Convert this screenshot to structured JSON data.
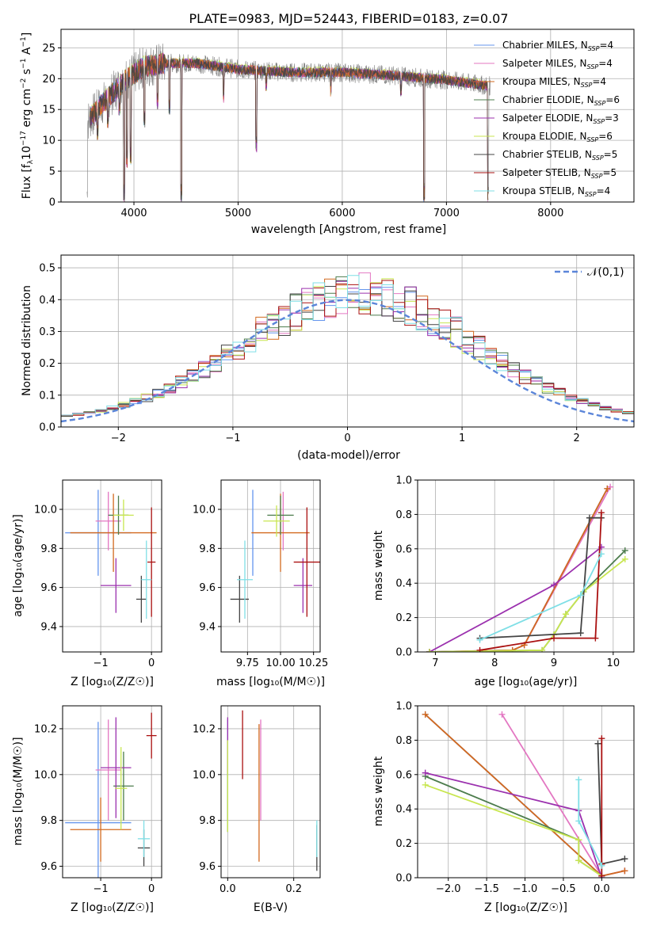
{
  "figure": {
    "title": "PLATE=0983, MJD=52443, FIBERID=0183, z=0.07"
  },
  "series_meta": [
    {
      "name": "Chabrier MILES, N$_{SSP}$=4",
      "label_main": "Chabrier MILES, N",
      "label_sub": "SSP",
      "label_tail": "=4",
      "color": "#6495ed"
    },
    {
      "name": "Salpeter MILES, N_SSP=4",
      "label_main": "Salpeter MILES, N",
      "label_sub": "SSP",
      "label_tail": "=4",
      "color": "#e377c2"
    },
    {
      "name": "Kroupa MILES, N_SSP=4",
      "label_main": "Kroupa MILES, N",
      "label_sub": "SSP",
      "label_tail": "=4",
      "color": "#d2691e"
    },
    {
      "name": "Chabrier ELODIE, N_SSP=6",
      "label_main": "Chabrier ELODIE, N",
      "label_sub": "SSP",
      "label_tail": "=6",
      "color": "#4c7c4c"
    },
    {
      "name": "Salpeter ELODIE, N_SSP=3",
      "label_main": "Salpeter ELODIE, N",
      "label_sub": "SSP",
      "label_tail": "=3",
      "color": "#9b30ae"
    },
    {
      "name": "Kroupa ELODIE, N_SSP=6",
      "label_main": "Kroupa ELODIE, N",
      "label_sub": "SSP",
      "label_tail": "=6",
      "color": "#c8e650"
    },
    {
      "name": "Chabrier STELIB, N_SSP=5",
      "label_main": "Chabrier STELIB, N",
      "label_sub": "SSP",
      "label_tail": "=5",
      "color": "#444444"
    },
    {
      "name": "Salpeter STELIB, N_SSP=5",
      "label_main": "Salpeter STELIB, N",
      "label_sub": "SSP",
      "label_tail": "=5",
      "color": "#aa1010"
    },
    {
      "name": "Kroupa STELIB, N_SSP=4",
      "label_main": "Kroupa STELIB, N",
      "label_sub": "SSP",
      "label_tail": "=4",
      "color": "#7fdfe6"
    }
  ],
  "chart_data": [
    {
      "id": "spectrum",
      "type": "line",
      "xlabel": "wavelength [Angstrom, rest frame]",
      "ylabel": "Flux [f_λ 10^-17 erg cm^-2 s^-1 A^-1]",
      "xlim": [
        3300,
        8800
      ],
      "ylim": [
        0,
        28
      ],
      "xticks": [
        4000,
        5000,
        6000,
        7000,
        8000
      ],
      "yticks": [
        0,
        5,
        10,
        15,
        20,
        25
      ],
      "legend_position": "top-right",
      "data_color": "#808080",
      "continuum": [
        [
          3550,
          13
        ],
        [
          3700,
          16
        ],
        [
          3900,
          19.5
        ],
        [
          4100,
          22
        ],
        [
          4300,
          22.5
        ],
        [
          4600,
          22.5
        ],
        [
          5000,
          21.5
        ],
        [
          5500,
          21
        ],
        [
          6000,
          21
        ],
        [
          6500,
          20.5
        ],
        [
          7000,
          19.8
        ],
        [
          7400,
          18.8
        ]
      ],
      "absorption_lines": [
        {
          "x": 3550,
          "y": 0
        },
        {
          "x": 3650,
          "y": 10
        },
        {
          "x": 3750,
          "y": 12
        },
        {
          "x": 3860,
          "y": 14
        },
        {
          "x": 3905,
          "y": 0
        },
        {
          "x": 3933,
          "y": 5.5
        },
        {
          "x": 3968,
          "y": 6
        },
        {
          "x": 4101,
          "y": 12
        },
        {
          "x": 4227,
          "y": 15
        },
        {
          "x": 4340,
          "y": 14
        },
        {
          "x": 4455,
          "y": 0
        },
        {
          "x": 4861,
          "y": 16
        },
        {
          "x": 5175,
          "y": 8
        },
        {
          "x": 5270,
          "y": 18
        },
        {
          "x": 5890,
          "y": 17
        },
        {
          "x": 6563,
          "y": 17
        },
        {
          "x": 6785,
          "y": 0
        },
        {
          "x": 7400,
          "y": 0
        }
      ]
    },
    {
      "id": "residuals",
      "type": "histogram",
      "xlabel": "(data-model)/error",
      "ylabel": "Normed distribution",
      "xlim": [
        -2.5,
        2.5
      ],
      "ylim": [
        0,
        0.54
      ],
      "xticks": [
        -2,
        -1,
        0,
        1,
        2
      ],
      "yticks": [
        0.0,
        0.1,
        0.2,
        0.3,
        0.4,
        0.5
      ],
      "bin_width": 0.1,
      "legend_label": "𝒩(0,1)",
      "gauss_color": "#5b85d9",
      "gauss_mean": 0,
      "gauss_sigma": 1
    },
    {
      "id": "age-vs-Z",
      "type": "errorbar",
      "xlabel": "Z [log₁₀(Z/Z☉)]",
      "ylabel": "age  [log₁₀(age/yr)]",
      "xlim": [
        -1.75,
        0.2
      ],
      "ylim": [
        9.27,
        10.15
      ],
      "xticks": [
        -1,
        0
      ],
      "yticks": [
        9.4,
        9.6,
        9.8,
        10.0
      ],
      "points": [
        {
          "s": 0,
          "x": -1.05,
          "xe": 0.65,
          "y": 9.88,
          "ye": 0.22
        },
        {
          "s": 1,
          "x": -0.85,
          "xe": 0.25,
          "y": 9.94,
          "ye": 0.15
        },
        {
          "s": 2,
          "x": -0.75,
          "xe": 0.85,
          "y": 9.88,
          "ye": 0.2
        },
        {
          "s": 3,
          "x": -0.65,
          "xe": 0.2,
          "y": 9.97,
          "ye": 0.1
        },
        {
          "s": 4,
          "x": -0.7,
          "xe": 0.3,
          "y": 9.61,
          "ye": 0.14
        },
        {
          "s": 5,
          "x": -0.55,
          "xe": 0.2,
          "y": 9.97,
          "ye": 0.08
        },
        {
          "s": 6,
          "x": -0.2,
          "xe": 0.1,
          "y": 9.54,
          "ye": 0.12
        },
        {
          "s": 7,
          "x": 0.0,
          "xe": 0.08,
          "y": 9.73,
          "ye": 0.28
        },
        {
          "s": 8,
          "x": -0.1,
          "xe": 0.1,
          "y": 9.64,
          "ye": 0.2
        }
      ]
    },
    {
      "id": "age-vs-mass",
      "type": "errorbar",
      "xlabel": "mass [log₁₀(M/M☉)]",
      "ylabel": "",
      "xlim": [
        9.55,
        10.3
      ],
      "ylim": [
        9.27,
        10.15
      ],
      "xticks": [
        9.75,
        10.0,
        10.25
      ],
      "yticks": [
        9.4,
        9.6,
        9.8,
        10.0
      ],
      "points": [
        {
          "s": 0,
          "x": 9.79,
          "xe": 0.0,
          "y": 9.88,
          "ye": 0.22
        },
        {
          "s": 1,
          "x": 10.02,
          "xe": 0.0,
          "y": 9.94,
          "ye": 0.15
        },
        {
          "s": 2,
          "x": 10.0,
          "xe": 0.22,
          "y": 9.88,
          "ye": 0.2
        },
        {
          "s": 3,
          "x": 10.0,
          "xe": 0.1,
          "y": 9.97,
          "ye": 0.1
        },
        {
          "s": 4,
          "x": 10.17,
          "xe": 0.07,
          "y": 9.61,
          "ye": 0.14
        },
        {
          "s": 5,
          "x": 9.97,
          "xe": 0.1,
          "y": 9.94,
          "ye": 0.08
        },
        {
          "s": 6,
          "x": 9.69,
          "xe": 0.07,
          "y": 9.54,
          "ye": 0.12
        },
        {
          "s": 7,
          "x": 10.2,
          "xe": 0.1,
          "y": 9.73,
          "ye": 0.28
        },
        {
          "s": 8,
          "x": 9.73,
          "xe": 0.06,
          "y": 9.64,
          "ye": 0.2
        }
      ]
    },
    {
      "id": "cum-mass-vs-age",
      "type": "line",
      "xlabel": "age  [log₁₀(age/yr)]",
      "ylabel": "mass weight",
      "xlim": [
        6.7,
        10.35
      ],
      "ylim": [
        0,
        1
      ],
      "xticks": [
        7,
        8,
        9,
        10
      ],
      "yticks": [
        0.0,
        0.2,
        0.4,
        0.6,
        0.8,
        1.0
      ],
      "series": [
        {
          "s": 0,
          "x": [
            6.9,
            8.3,
            8.5,
            9.9
          ],
          "y": [
            0.0,
            0.01,
            0.04,
            0.95
          ]
        },
        {
          "s": 1,
          "x": [
            6.9,
            8.3,
            8.5,
            9.95
          ],
          "y": [
            0.0,
            0.01,
            0.04,
            0.96
          ]
        },
        {
          "s": 2,
          "x": [
            6.9,
            8.3,
            8.5,
            9.9
          ],
          "y": [
            0.0,
            0.01,
            0.04,
            0.95
          ]
        },
        {
          "s": 3,
          "x": [
            6.9,
            8.8,
            9.0,
            9.2,
            9.5,
            10.2
          ],
          "y": [
            0.0,
            0.01,
            0.1,
            0.22,
            0.35,
            0.59
          ]
        },
        {
          "s": 4,
          "x": [
            6.9,
            9.0,
            9.8
          ],
          "y": [
            0.0,
            0.39,
            0.61
          ]
        },
        {
          "s": 5,
          "x": [
            6.9,
            8.8,
            9.0,
            9.2,
            9.5,
            10.2
          ],
          "y": [
            0.0,
            0.01,
            0.1,
            0.22,
            0.35,
            0.54
          ]
        },
        {
          "s": 6,
          "x": [
            7.75,
            9.45,
            9.6,
            9.8
          ],
          "y": [
            0.08,
            0.11,
            0.78,
            0.78
          ]
        },
        {
          "s": 7,
          "x": [
            7.75,
            9.0,
            9.7,
            9.8
          ],
          "y": [
            0.01,
            0.08,
            0.08,
            0.81
          ]
        },
        {
          "s": 8,
          "x": [
            7.75,
            9.45,
            9.8
          ],
          "y": [
            0.07,
            0.33,
            0.57
          ]
        }
      ]
    },
    {
      "id": "mass-vs-Z",
      "type": "errorbar",
      "xlabel": "Z [log₁₀(Z/Z☉)]",
      "ylabel": "mass [log₁₀(M/M☉)]",
      "xlim": [
        -1.75,
        0.2
      ],
      "ylim": [
        9.55,
        10.3
      ],
      "xticks": [
        -1,
        0
      ],
      "yticks": [
        9.6,
        9.8,
        10.0,
        10.2
      ],
      "points": [
        {
          "s": 0,
          "x": -1.05,
          "xe": 0.65,
          "y": 9.79,
          "ye": 0.44
        },
        {
          "s": 1,
          "x": -0.85,
          "xe": 0.25,
          "y": 10.02,
          "ye": 0.22
        },
        {
          "s": 2,
          "x": -1.0,
          "xe": 0.6,
          "y": 9.76,
          "ye": 0.14
        },
        {
          "s": 3,
          "x": -0.55,
          "xe": 0.2,
          "y": 9.95,
          "ye": 0.15
        },
        {
          "s": 4,
          "x": -0.7,
          "xe": 0.3,
          "y": 10.03,
          "ye": 0.22
        },
        {
          "s": 5,
          "x": -0.6,
          "xe": 0.12,
          "y": 9.94,
          "ye": 0.18
        },
        {
          "s": 6,
          "x": -0.15,
          "xe": 0.12,
          "y": 9.68,
          "ye": 0.08
        },
        {
          "s": 7,
          "x": 0.0,
          "xe": 0.1,
          "y": 10.17,
          "ye": 0.1
        },
        {
          "s": 8,
          "x": -0.15,
          "xe": 0.12,
          "y": 9.72,
          "ye": 0.08
        }
      ]
    },
    {
      "id": "mass-vs-EBV",
      "type": "errorbar",
      "xlabel": "E(B-V)",
      "ylabel": "",
      "xlim": [
        -0.02,
        0.28
      ],
      "ylim": [
        9.55,
        10.3
      ],
      "xticks": [
        0.0,
        0.2
      ],
      "yticks": [
        9.6,
        9.8,
        10.0,
        10.2
      ],
      "points": [
        {
          "s": 0,
          "x": 0.0,
          "xe": 0.0,
          "y": 10.02,
          "ye": 0.22
        },
        {
          "s": 1,
          "x": 0.1,
          "xe": 0.0,
          "y": 10.02,
          "ye": 0.22
        },
        {
          "s": 2,
          "x": 0.095,
          "xe": 0.0,
          "y": 9.92,
          "ye": 0.3
        },
        {
          "s": 3,
          "x": 0.0,
          "xe": 0.0,
          "y": 9.95,
          "ye": 0.2
        },
        {
          "s": 4,
          "x": 0.0,
          "xe": 0.0,
          "y": 10.13,
          "ye": 0.12
        },
        {
          "s": 5,
          "x": 0.0,
          "xe": 0.0,
          "y": 9.95,
          "ye": 0.2
        },
        {
          "s": 6,
          "x": 0.27,
          "xe": 0.0,
          "y": 9.68,
          "ye": 0.1
        },
        {
          "s": 7,
          "x": 0.045,
          "xe": 0.0,
          "y": 10.13,
          "ye": 0.15
        },
        {
          "s": 8,
          "x": 0.27,
          "xe": 0.0,
          "y": 9.72,
          "ye": 0.08
        }
      ]
    },
    {
      "id": "cum-mass-vs-Z",
      "type": "line",
      "xlabel": "Z [log₁₀(Z/Z☉)]",
      "ylabel": "mass weight",
      "xlim": [
        -2.4,
        0.42
      ],
      "ylim": [
        0,
        1
      ],
      "xticks": [
        -2.0,
        -1.5,
        -1.0,
        -0.5,
        0.0
      ],
      "yticks": [
        0.0,
        0.2,
        0.4,
        0.6,
        0.8,
        1.0
      ],
      "series": [
        {
          "s": 0,
          "x": [
            -2.3,
            0.0,
            0.3
          ],
          "y": [
            0.95,
            0.01,
            0.04
          ]
        },
        {
          "s": 1,
          "x": [
            -1.3,
            0.0,
            0.3
          ],
          "y": [
            0.95,
            0.01,
            0.04
          ]
        },
        {
          "s": 2,
          "x": [
            -2.3,
            0.0,
            0.3
          ],
          "y": [
            0.95,
            0.01,
            0.04
          ]
        },
        {
          "s": 3,
          "x": [
            -2.3,
            -0.3,
            -0.3,
            0.0
          ],
          "y": [
            0.59,
            0.22,
            0.1,
            0.01
          ]
        },
        {
          "s": 4,
          "x": [
            -2.3,
            -0.3,
            0.0
          ],
          "y": [
            0.61,
            0.39,
            0.0
          ]
        },
        {
          "s": 5,
          "x": [
            -2.3,
            -0.3,
            -0.3,
            0.0
          ],
          "y": [
            0.54,
            0.22,
            0.1,
            0.01
          ]
        },
        {
          "s": 6,
          "x": [
            -0.05,
            0.0,
            0.3
          ],
          "y": [
            0.78,
            0.08,
            0.11
          ]
        },
        {
          "s": 7,
          "x": 0.0,
          "xa": [
            0.0,
            0.0,
            0.0
          ],
          "ya": [
            0.81,
            0.08,
            0.01
          ]
        },
        {
          "s": 8,
          "x": [
            -0.3,
            -0.3,
            0.0
          ],
          "y": [
            0.57,
            0.33,
            0.07
          ]
        }
      ]
    }
  ]
}
